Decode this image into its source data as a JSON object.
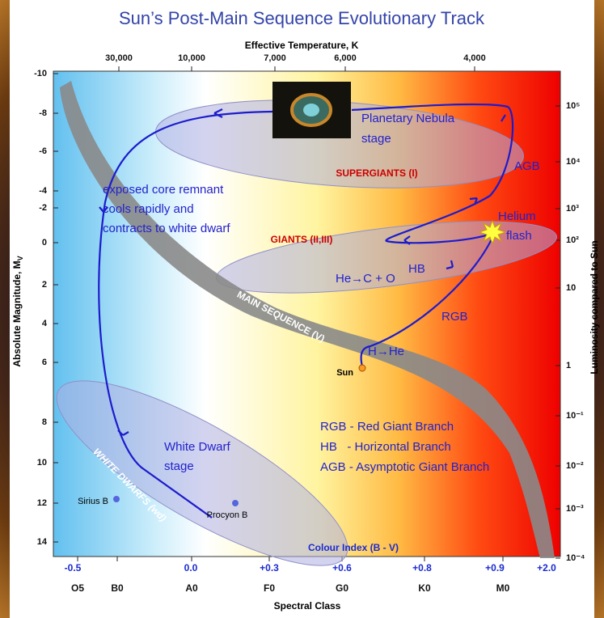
{
  "title": "Sun’s Post-Main Sequence Evolutionary Track",
  "axes": {
    "top_label": "Effective Temperature, K",
    "top_ticks": [
      "30,000",
      "10,000",
      "7,000",
      "6,000",
      "4,000"
    ],
    "left_label": "Absolute Magnitude, M",
    "left_label_sub": "V",
    "left_ticks": [
      "-10",
      "-8",
      "-6",
      "-4",
      "-2",
      "0",
      "2",
      "4",
      "6",
      "8",
      "10",
      "12",
      "14"
    ],
    "right_label": "Luminosity compared to Sun",
    "right_ticks": [
      "10⁵",
      "10⁴",
      "10³",
      "10²",
      "10",
      "1",
      "10⁻¹",
      "10⁻²",
      "10⁻³",
      "10⁻⁴"
    ],
    "bottom_label": "Spectral Class",
    "bottom_ticks": [
      "O5",
      "B0",
      "A0",
      "F0",
      "G0",
      "K0",
      "M0"
    ],
    "colour_index_label": "Colour Index (B - V)",
    "colour_index_ticks": [
      "-0.5",
      "0.0",
      "+0.3",
      "+0.6",
      "+0.8",
      "+0.9",
      "+2.0"
    ]
  },
  "regions": {
    "supergiants": "SUPERGIANTS (I)",
    "giants": "GIANTS (II,III)",
    "main_sequence": "MAIN SEQUENCE (V)",
    "white_dwarfs": "WHITE DWARFS (wd)"
  },
  "annotations": {
    "planetary_nebula": [
      "Planetary Nebula",
      "stage"
    ],
    "agb": "AGB",
    "exposed_core": [
      "exposed core remnant",
      "cools rapidly and",
      "contracts to white dwarf"
    ],
    "helium_flash": [
      "Helium",
      "flash"
    ],
    "hb": "HB",
    "he_c_o": "He→C + O",
    "rgb": "RGB",
    "h_he": "H→He",
    "sun": "Sun",
    "white_dwarf_stage": [
      "White Dwarf",
      "stage"
    ],
    "sirius_b": "Sirius B",
    "procyon_b": "Procyon B"
  },
  "legend": [
    "RGB - Red Giant Branch",
    "HB   - Horizontal Branch",
    "AGB - Asymptotic Giant Branch"
  ]
}
